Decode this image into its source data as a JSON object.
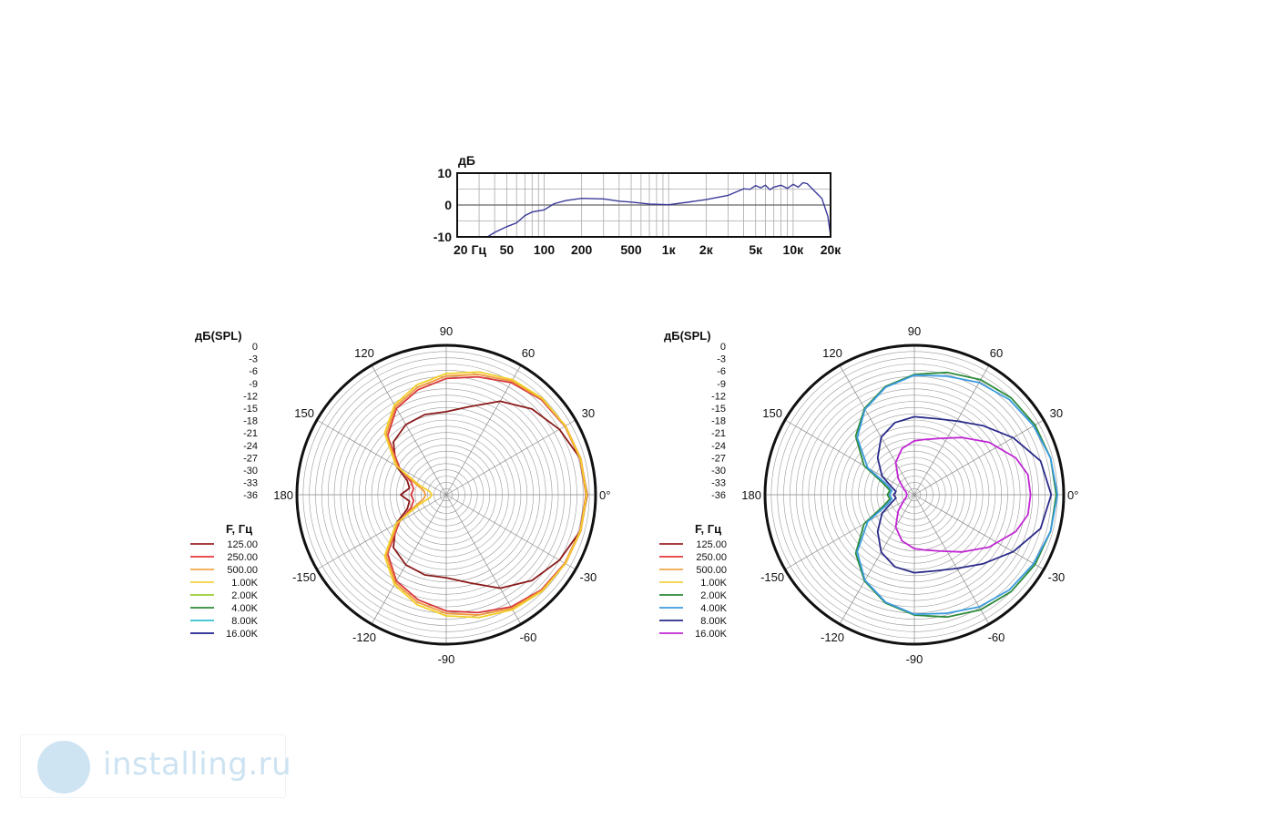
{
  "chart_data": [
    {
      "type": "line",
      "ylabel": "дБ",
      "xscale": "log",
      "xlim": [
        20,
        20000
      ],
      "ylim": [
        -10,
        10
      ],
      "yticks": [
        "10",
        "0",
        "-10"
      ],
      "xticks": [
        {
          "v": 20,
          "label": "20 Гц"
        },
        {
          "v": 50,
          "label": "50"
        },
        {
          "v": 100,
          "label": "100"
        },
        {
          "v": 200,
          "label": "200"
        },
        {
          "v": 500,
          "label": "500"
        },
        {
          "v": 1000,
          "label": "1к"
        },
        {
          "v": 2000,
          "label": "2к"
        },
        {
          "v": 5000,
          "label": "5к"
        },
        {
          "v": 10000,
          "label": "10к"
        },
        {
          "v": 20000,
          "label": "20к"
        }
      ],
      "grid": true,
      "series": [
        {
          "color": "#3a3a9a",
          "points": [
            [
              35,
              -10
            ],
            [
              40,
              -8.6
            ],
            [
              50,
              -6.8
            ],
            [
              60,
              -5.6
            ],
            [
              70,
              -3.3
            ],
            [
              80,
              -2.2
            ],
            [
              100,
              -1.5
            ],
            [
              120,
              0.4
            ],
            [
              150,
              1.4
            ],
            [
              200,
              2.1
            ],
            [
              300,
              1.9
            ],
            [
              400,
              1.2
            ],
            [
              500,
              0.9
            ],
            [
              700,
              0.3
            ],
            [
              1000,
              0.1
            ],
            [
              1500,
              1.0
            ],
            [
              2000,
              1.7
            ],
            [
              3000,
              3.0
            ],
            [
              4000,
              5.1
            ],
            [
              4500,
              4.9
            ],
            [
              5000,
              6.1
            ],
            [
              5500,
              5.4
            ],
            [
              6000,
              6.2
            ],
            [
              6500,
              4.8
            ],
            [
              7000,
              5.6
            ],
            [
              8000,
              6.2
            ],
            [
              9000,
              5.2
            ],
            [
              10000,
              6.5
            ],
            [
              11000,
              5.6
            ],
            [
              12000,
              7.0
            ],
            [
              13000,
              6.7
            ],
            [
              15000,
              4.2
            ],
            [
              17000,
              2.1
            ],
            [
              19000,
              -3.5
            ],
            [
              20000,
              -9.6
            ]
          ]
        }
      ]
    },
    {
      "type": "polar",
      "rlabel": "дБ(SPL)",
      "rticks": [
        "0",
        "-3",
        "-6",
        "-9",
        "-12",
        "-15",
        "-18",
        "-21",
        "-24",
        "-27",
        "-30",
        "-33",
        "-36"
      ],
      "rmin": -36,
      "rmax": 0,
      "angle_labels": [
        {
          "deg": 90,
          "label": "90"
        },
        {
          "deg": 60,
          "label": "60"
        },
        {
          "deg": 30,
          "label": "30"
        },
        {
          "deg": 0,
          "label": "0°"
        },
        {
          "deg": -30,
          "label": "-30"
        },
        {
          "deg": -60,
          "label": "-60"
        },
        {
          "deg": -90,
          "label": "-90"
        },
        {
          "deg": -120,
          "label": "-120"
        },
        {
          "deg": -150,
          "label": "-150"
        },
        {
          "deg": 180,
          "label": "180"
        },
        {
          "deg": 150,
          "label": "150"
        },
        {
          "deg": 120,
          "label": "120"
        }
      ],
      "legend_title": "F, Гц",
      "legend": [
        {
          "label": "125.00",
          "color": "#9b2226"
        },
        {
          "label": "250.00",
          "color": "#e5383b"
        },
        {
          "label": "500.00",
          "color": "#f3a64a"
        },
        {
          "label": "1.00K",
          "color": "#f4d03f"
        },
        {
          "label": "2.00K",
          "color": "#9acd32"
        },
        {
          "label": "4.00K",
          "color": "#2e8b3a"
        },
        {
          "label": "8.00K",
          "color": "#30c0d0"
        },
        {
          "label": "16.00K",
          "color": "#1f1f8f"
        }
      ],
      "series": [
        {
          "name": "125.00",
          "color": "#8b1a1a",
          "points": [
            [
              0,
              -2
            ],
            [
              15,
              -2.5
            ],
            [
              30,
              -4.5
            ],
            [
              45,
              -6.8
            ],
            [
              60,
              -10
            ],
            [
              75,
              -14
            ],
            [
              90,
              -16
            ],
            [
              105,
              -16
            ],
            [
              120,
              -16.5
            ],
            [
              135,
              -18
            ],
            [
              150,
              -22
            ],
            [
              160,
              -26
            ],
            [
              170,
              -27
            ],
            [
              180,
              -25
            ]
          ]
        },
        {
          "name": "250.00",
          "color": "#d8383c",
          "points": [
            [
              0,
              -2.3
            ],
            [
              15,
              -2.6
            ],
            [
              30,
              -3
            ],
            [
              45,
              -3.6
            ],
            [
              60,
              -4.8
            ],
            [
              75,
              -6.6
            ],
            [
              90,
              -8
            ],
            [
              105,
              -9.8
            ],
            [
              120,
              -12
            ],
            [
              135,
              -16
            ],
            [
              150,
              -23
            ],
            [
              160,
              -27
            ],
            [
              170,
              -28
            ],
            [
              180,
              -27.5
            ]
          ]
        },
        {
          "name": "500.00",
          "color": "#ef9a3c",
          "points": [
            [
              0,
              -2.1
            ],
            [
              15,
              -2.4
            ],
            [
              30,
              -2.8
            ],
            [
              45,
              -3.4
            ],
            [
              60,
              -4.4
            ],
            [
              75,
              -6
            ],
            [
              90,
              -7.4
            ],
            [
              105,
              -9.2
            ],
            [
              120,
              -11.5
            ],
            [
              135,
              -15.5
            ],
            [
              150,
              -22.5
            ],
            [
              160,
              -28
            ],
            [
              170,
              -30.5
            ],
            [
              180,
              -31
            ]
          ]
        },
        {
          "name": "1.00K",
          "color": "#f2cf2c",
          "points": [
            [
              0,
              -2.2
            ],
            [
              15,
              -2.5
            ],
            [
              30,
              -2.9
            ],
            [
              45,
              -3.2
            ],
            [
              60,
              -4
            ],
            [
              75,
              -5.4
            ],
            [
              90,
              -6.8
            ],
            [
              105,
              -8.6
            ],
            [
              120,
              -11
            ],
            [
              135,
              -15
            ],
            [
              150,
              -22
            ],
            [
              160,
              -29
            ],
            [
              170,
              -32
            ],
            [
              180,
              -32.5
            ]
          ]
        }
      ]
    },
    {
      "type": "polar",
      "rlabel": "дБ(SPL)",
      "rticks": [
        "0",
        "-3",
        "-6",
        "-9",
        "-12",
        "-15",
        "-18",
        "-21",
        "-24",
        "-27",
        "-30",
        "-33",
        "-36"
      ],
      "rmin": -36,
      "rmax": 0,
      "angle_labels": [
        {
          "deg": 90,
          "label": "90"
        },
        {
          "deg": 60,
          "label": "60"
        },
        {
          "deg": 30,
          "label": "30"
        },
        {
          "deg": 0,
          "label": "0°"
        },
        {
          "deg": -30,
          "label": "-30"
        },
        {
          "deg": -60,
          "label": "-60"
        },
        {
          "deg": -90,
          "label": "-90"
        },
        {
          "deg": -120,
          "label": "-120"
        },
        {
          "deg": -150,
          "label": "-150"
        },
        {
          "deg": 180,
          "label": "180"
        },
        {
          "deg": 150,
          "label": "150"
        },
        {
          "deg": 120,
          "label": "120"
        }
      ],
      "legend_title": "F, Гц",
      "legend": [
        {
          "label": "125.00",
          "color": "#9b2226"
        },
        {
          "label": "250.00",
          "color": "#e5383b"
        },
        {
          "label": "500.00",
          "color": "#f3a64a"
        },
        {
          "label": "1.00K",
          "color": "#f4d03f"
        },
        {
          "label": "2.00K",
          "color": "#2e8b3a"
        },
        {
          "label": "4.00K",
          "color": "#3b9be0"
        },
        {
          "label": "8.00K",
          "color": "#2a2a8a"
        },
        {
          "label": "16.00K",
          "color": "#c026d3"
        }
      ],
      "series": [
        {
          "name": "2.00K",
          "color": "#2e8b3a",
          "points": [
            [
              0,
              -1.8
            ],
            [
              15,
              -2
            ],
            [
              30,
              -2.4
            ],
            [
              45,
              -3
            ],
            [
              60,
              -4
            ],
            [
              75,
              -5.5
            ],
            [
              90,
              -7
            ],
            [
              105,
              -9
            ],
            [
              120,
              -12
            ],
            [
              135,
              -16
            ],
            [
              150,
              -22
            ],
            [
              160,
              -28
            ],
            [
              170,
              -30
            ],
            [
              180,
              -29.5
            ]
          ]
        },
        {
          "name": "4.00K",
          "color": "#3b9be0",
          "points": [
            [
              0,
              -1.5
            ],
            [
              15,
              -2
            ],
            [
              30,
              -2.8
            ],
            [
              45,
              -3.6
            ],
            [
              60,
              -4.8
            ],
            [
              75,
              -6.4
            ],
            [
              90,
              -7.2
            ],
            [
              105,
              -9.2
            ],
            [
              120,
              -12.2
            ],
            [
              135,
              -16.5
            ],
            [
              150,
              -23
            ],
            [
              160,
              -29
            ],
            [
              170,
              -30.5
            ],
            [
              180,
              -30
            ]
          ]
        },
        {
          "name": "8.00K",
          "color": "#2a2a8a",
          "points": [
            [
              0,
              -3
            ],
            [
              15,
              -4.5
            ],
            [
              30,
              -8.5
            ],
            [
              45,
              -12.5
            ],
            [
              60,
              -15.5
            ],
            [
              75,
              -17
            ],
            [
              90,
              -17.2
            ],
            [
              105,
              -18
            ],
            [
              120,
              -20
            ],
            [
              135,
              -23.5
            ],
            [
              150,
              -27
            ],
            [
              160,
              -30
            ],
            [
              170,
              -31.5
            ],
            [
              180,
              -31
            ]
          ]
        },
        {
          "name": "16.00K",
          "color": "#c026d3",
          "points": [
            [
              0,
              -8
            ],
            [
              10,
              -8.2
            ],
            [
              20,
              -10
            ],
            [
              35,
              -14
            ],
            [
              50,
              -18
            ],
            [
              65,
              -21
            ],
            [
              80,
              -22.5
            ],
            [
              90,
              -23
            ],
            [
              105,
              -24.5
            ],
            [
              120,
              -27
            ],
            [
              135,
              -30.5
            ],
            [
              150,
              -33
            ],
            [
              165,
              -34
            ],
            [
              180,
              -34.2
            ]
          ]
        }
      ]
    }
  ],
  "watermark": {
    "text": "installing.ru"
  }
}
